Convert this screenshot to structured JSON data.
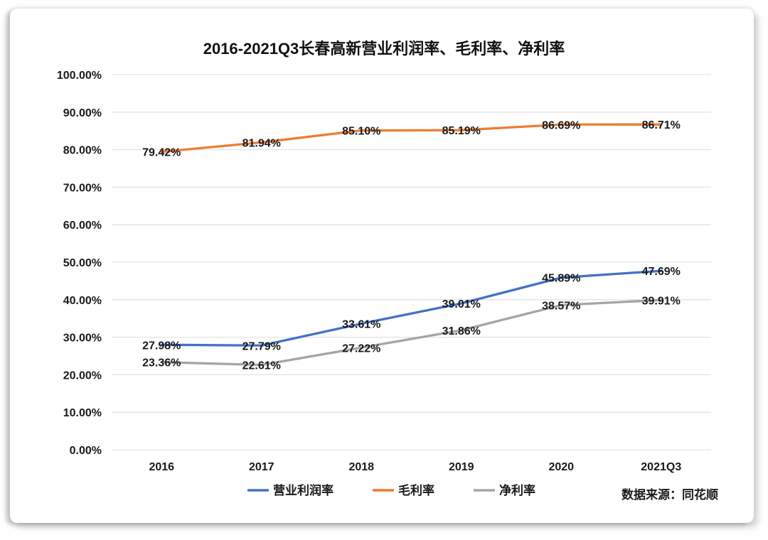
{
  "chart_data": {
    "type": "line",
    "title": "2016-2021Q3长春高新营业利润率、毛利率、净利率",
    "categories": [
      "2016",
      "2017",
      "2018",
      "2019",
      "2020",
      "2021Q3"
    ],
    "series": [
      {
        "name": "营业利润率",
        "color": "#4472C4",
        "values": [
          27.98,
          27.79,
          33.61,
          39.01,
          45.89,
          47.69
        ]
      },
      {
        "name": "毛利率",
        "color": "#ED7D31",
        "values": [
          79.42,
          81.94,
          85.1,
          85.19,
          86.69,
          86.71
        ]
      },
      {
        "name": "净利率",
        "color": "#A5A5A5",
        "values": [
          23.36,
          22.61,
          27.22,
          31.86,
          38.57,
          39.91
        ]
      }
    ],
    "xlabel": "",
    "ylabel": "",
    "ylim": [
      0,
      100
    ],
    "y_tick_step": 10,
    "y_tick_labels": [
      "0.00%",
      "10.00%",
      "20.00%",
      "30.00%",
      "40.00%",
      "50.00%",
      "60.00%",
      "70.00%",
      "80.00%",
      "90.00%",
      "100.00%"
    ],
    "data_label_format": "0.00%",
    "data_label_position": "center",
    "grid": "horizontal",
    "gridline_color": "#e3e3e3",
    "legend_position": "bottom",
    "source_note": "数据来源：同花顺"
  }
}
